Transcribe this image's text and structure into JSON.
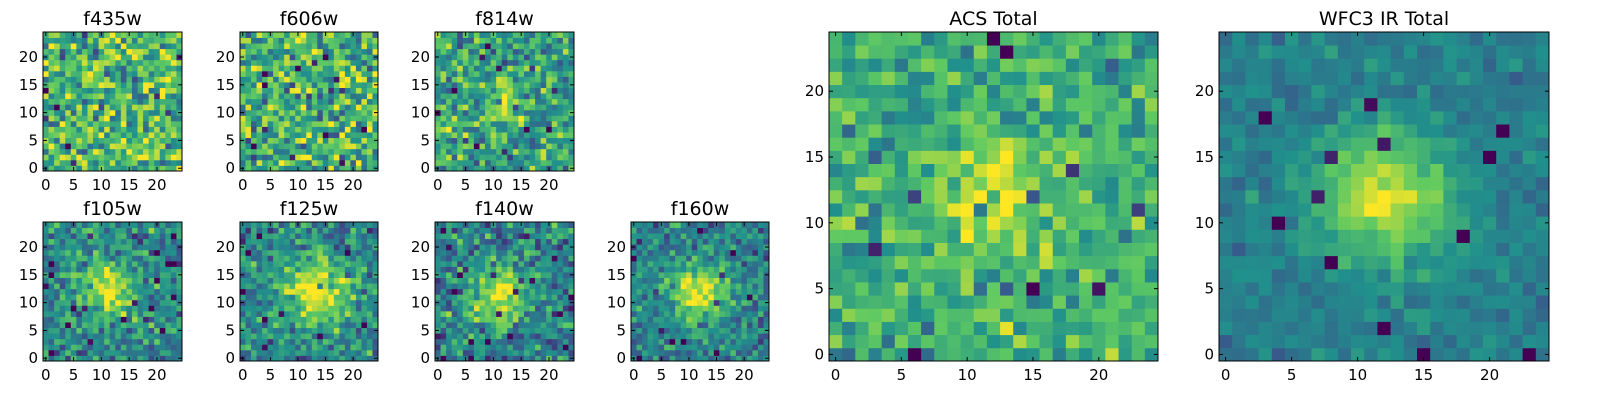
{
  "figure": {
    "colormap": "viridis",
    "colormap_stops": [
      "#440154",
      "#3b528b",
      "#21918c",
      "#5ec962",
      "#fde725"
    ]
  },
  "chart_data": [
    {
      "type": "heatmap",
      "title": "f435w",
      "grid_size": 25,
      "xlim": [
        -0.5,
        24.5
      ],
      "ylim": [
        -0.5,
        24.5
      ],
      "xticks": [
        0,
        5,
        10,
        15,
        20
      ],
      "yticks": [
        0,
        5,
        10,
        15,
        20
      ],
      "profile": {
        "source_x": 12,
        "source_y": 12,
        "amplitude": 0.0,
        "width": 3.0,
        "base": 0.66,
        "noise": 0.24,
        "seed": 11
      }
    },
    {
      "type": "heatmap",
      "title": "f606w",
      "grid_size": 25,
      "xlim": [
        -0.5,
        24.5
      ],
      "ylim": [
        -0.5,
        24.5
      ],
      "xticks": [
        0,
        5,
        10,
        15,
        20
      ],
      "yticks": [
        0,
        5,
        10,
        15,
        20
      ],
      "profile": {
        "source_x": 12,
        "source_y": 12,
        "amplitude": 0.0,
        "width": 3.0,
        "base": 0.64,
        "noise": 0.24,
        "seed": 23
      }
    },
    {
      "type": "heatmap",
      "title": "f814w",
      "grid_size": 25,
      "xlim": [
        -0.5,
        24.5
      ],
      "ylim": [
        -0.5,
        24.5
      ],
      "xticks": [
        0,
        5,
        10,
        15,
        20
      ],
      "yticks": [
        0,
        5,
        10,
        15,
        20
      ],
      "profile": {
        "source_x": 12,
        "source_y": 12,
        "amplitude": 0.32,
        "width": 2.2,
        "base": 0.58,
        "noise": 0.2,
        "seed": 37
      }
    },
    {
      "type": "heatmap",
      "title": "f105w",
      "grid_size": 25,
      "xlim": [
        -0.5,
        24.5
      ],
      "ylim": [
        -0.5,
        24.5
      ],
      "xticks": [
        0,
        5,
        10,
        15,
        20
      ],
      "yticks": [
        0,
        5,
        10,
        15,
        20
      ],
      "profile": {
        "source_x": 11,
        "source_y": 12,
        "amplitude": 0.5,
        "width": 3.2,
        "base": 0.47,
        "noise": 0.17,
        "seed": 41
      }
    },
    {
      "type": "heatmap",
      "title": "f125w",
      "grid_size": 25,
      "xlim": [
        -0.5,
        24.5
      ],
      "ylim": [
        -0.5,
        24.5
      ],
      "xticks": [
        0,
        5,
        10,
        15,
        20
      ],
      "yticks": [
        0,
        5,
        10,
        15,
        20
      ],
      "profile": {
        "source_x": 13,
        "source_y": 12,
        "amplitude": 0.5,
        "width": 4.2,
        "base": 0.47,
        "noise": 0.17,
        "seed": 53
      }
    },
    {
      "type": "heatmap",
      "title": "f140w",
      "grid_size": 25,
      "xlim": [
        -0.5,
        24.5
      ],
      "ylim": [
        -0.5,
        24.5
      ],
      "xticks": [
        0,
        5,
        10,
        15,
        20
      ],
      "yticks": [
        0,
        5,
        10,
        15,
        20
      ],
      "profile": {
        "source_x": 11,
        "source_y": 11,
        "amplitude": 0.52,
        "width": 3.8,
        "base": 0.44,
        "noise": 0.19,
        "seed": 67
      }
    },
    {
      "type": "heatmap",
      "title": "f160w",
      "grid_size": 25,
      "xlim": [
        -0.5,
        24.5
      ],
      "ylim": [
        -0.5,
        24.5
      ],
      "xticks": [
        0,
        5,
        10,
        15,
        20
      ],
      "yticks": [
        0,
        5,
        10,
        15,
        20
      ],
      "profile": {
        "source_x": 12,
        "source_y": 12,
        "amplitude": 0.55,
        "width": 3.3,
        "base": 0.45,
        "noise": 0.15,
        "seed": 79
      }
    },
    {
      "type": "heatmap",
      "title": "ACS Total",
      "grid_size": 25,
      "xlim": [
        -0.5,
        24.5
      ],
      "ylim": [
        -0.5,
        24.5
      ],
      "xticks": [
        0,
        5,
        10,
        15,
        20
      ],
      "yticks": [
        0,
        5,
        10,
        15,
        20
      ],
      "profile": {
        "source_x": 12,
        "source_y": 12,
        "amplitude": 0.3,
        "width": 3.0,
        "base": 0.62,
        "noise": 0.15,
        "seed": 97
      }
    },
    {
      "type": "heatmap",
      "title": "WFC3 IR Total",
      "grid_size": 25,
      "xlim": [
        -0.5,
        24.5
      ],
      "ylim": [
        -0.5,
        24.5
      ],
      "xticks": [
        0,
        5,
        10,
        15,
        20
      ],
      "yticks": [
        0,
        5,
        10,
        15,
        20
      ],
      "profile": {
        "source_x": 12,
        "source_y": 12,
        "amplitude": 0.52,
        "width": 3.4,
        "base": 0.43,
        "noise": 0.07,
        "seed": 113
      }
    }
  ]
}
